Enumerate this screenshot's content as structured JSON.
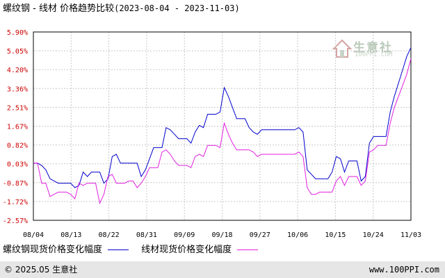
{
  "title_text": "螺纹钢 - 线材 价格趋势比较",
  "title_range": "(2023-08-04 - 2023-11-03)",
  "watermark": {
    "brand": "生意社",
    "domain": "100PPI.COM"
  },
  "legend": [
    {
      "name": "螺纹钢现货价格变化幅度",
      "color": "#0000cc"
    },
    {
      "name": "线材现货价格变化幅度",
      "color": "#e020e0"
    }
  ],
  "footer": {
    "copyright": "© 2025.05 生意社",
    "site": "www.100PPI.com"
  },
  "chart_data": {
    "type": "line",
    "title": "螺纹钢 - 线材 价格趋势比较",
    "subtitle": "(2023-08-04 - 2023-11-03)",
    "xlabel": "",
    "ylabel": "",
    "x_tick_labels": [
      "08/04",
      "08/13",
      "08/22",
      "08/31",
      "09/09",
      "09/18",
      "09/27",
      "10/06",
      "10/15",
      "10/24",
      "11/03"
    ],
    "y_tick_labels": [
      "5.90%",
      "5.05%",
      "4.20%",
      "3.36%",
      "2.51%",
      "1.67%",
      "0.82%",
      "0.03%",
      "-0.87%",
      "-1.72%",
      "-2.57%"
    ],
    "y_tick_values": [
      5.9,
      5.05,
      4.2,
      3.36,
      2.51,
      1.67,
      0.82,
      0.03,
      -0.87,
      -1.72,
      -2.57
    ],
    "ylim": [
      -2.57,
      5.9
    ],
    "xlim": [
      "2023-08-04",
      "2023-11-03"
    ],
    "grid": true,
    "legend_position": "bottom",
    "series": [
      {
        "name": "螺纹钢现货价格变化幅度",
        "color": "#0000cc",
        "points": [
          [
            "2023-08-04",
            0.0
          ],
          [
            "2023-08-05",
            0.0
          ],
          [
            "2023-08-06",
            -0.1
          ],
          [
            "2023-08-07",
            -0.3
          ],
          [
            "2023-08-08",
            -0.7
          ],
          [
            "2023-08-09",
            -0.8
          ],
          [
            "2023-08-10",
            -0.9
          ],
          [
            "2023-08-11",
            -0.9
          ],
          [
            "2023-08-12",
            -0.9
          ],
          [
            "2023-08-13",
            -0.9
          ],
          [
            "2023-08-14",
            -1.1
          ],
          [
            "2023-08-15",
            -1.0
          ],
          [
            "2023-08-16",
            -0.4
          ],
          [
            "2023-08-17",
            -0.6
          ],
          [
            "2023-08-18",
            -0.4
          ],
          [
            "2023-08-19",
            -0.4
          ],
          [
            "2023-08-20",
            -0.4
          ],
          [
            "2023-08-21",
            -0.9
          ],
          [
            "2023-08-22",
            -0.7
          ],
          [
            "2023-08-23",
            0.3
          ],
          [
            "2023-08-24",
            0.4
          ],
          [
            "2023-08-25",
            0.0
          ],
          [
            "2023-08-26",
            0.0
          ],
          [
            "2023-08-27",
            0.0
          ],
          [
            "2023-08-28",
            0.0
          ],
          [
            "2023-08-29",
            0.0
          ],
          [
            "2023-08-30",
            -0.6
          ],
          [
            "2023-08-31",
            -0.3
          ],
          [
            "2023-09-01",
            0.2
          ],
          [
            "2023-09-02",
            0.7
          ],
          [
            "2023-09-03",
            0.7
          ],
          [
            "2023-09-04",
            0.7
          ],
          [
            "2023-09-05",
            1.6
          ],
          [
            "2023-09-06",
            1.5
          ],
          [
            "2023-09-07",
            1.3
          ],
          [
            "2023-09-08",
            1.1
          ],
          [
            "2023-09-09",
            1.1
          ],
          [
            "2023-09-10",
            1.1
          ],
          [
            "2023-09-11",
            0.9
          ],
          [
            "2023-09-12",
            1.4
          ],
          [
            "2023-09-13",
            1.7
          ],
          [
            "2023-09-14",
            1.6
          ],
          [
            "2023-09-15",
            2.2
          ],
          [
            "2023-09-16",
            2.2
          ],
          [
            "2023-09-17",
            2.2
          ],
          [
            "2023-09-18",
            2.3
          ],
          [
            "2023-09-19",
            3.4
          ],
          [
            "2023-09-20",
            3.0
          ],
          [
            "2023-09-21",
            2.5
          ],
          [
            "2023-09-22",
            2.0
          ],
          [
            "2023-09-23",
            2.0
          ],
          [
            "2023-09-24",
            2.0
          ],
          [
            "2023-09-25",
            1.6
          ],
          [
            "2023-09-26",
            1.4
          ],
          [
            "2023-09-27",
            1.3
          ],
          [
            "2023-09-28",
            1.5
          ],
          [
            "2023-09-29",
            1.5
          ],
          [
            "2023-09-30",
            1.5
          ],
          [
            "2023-10-01",
            1.5
          ],
          [
            "2023-10-02",
            1.5
          ],
          [
            "2023-10-03",
            1.5
          ],
          [
            "2023-10-04",
            1.5
          ],
          [
            "2023-10-05",
            1.5
          ],
          [
            "2023-10-06",
            1.5
          ],
          [
            "2023-10-07",
            1.6
          ],
          [
            "2023-10-08",
            1.4
          ],
          [
            "2023-10-09",
            -0.3
          ],
          [
            "2023-10-10",
            -0.5
          ],
          [
            "2023-10-11",
            -0.7
          ],
          [
            "2023-10-12",
            -0.7
          ],
          [
            "2023-10-13",
            -0.7
          ],
          [
            "2023-10-14",
            -0.7
          ],
          [
            "2023-10-15",
            -0.4
          ],
          [
            "2023-10-16",
            0.3
          ],
          [
            "2023-10-17",
            0.2
          ],
          [
            "2023-10-18",
            -0.4
          ],
          [
            "2023-10-19",
            0.1
          ],
          [
            "2023-10-20",
            0.1
          ],
          [
            "2023-10-21",
            0.1
          ],
          [
            "2023-10-22",
            -0.8
          ],
          [
            "2023-10-23",
            -0.6
          ],
          [
            "2023-10-24",
            0.9
          ],
          [
            "2023-10-25",
            1.2
          ],
          [
            "2023-10-26",
            1.2
          ],
          [
            "2023-10-27",
            1.2
          ],
          [
            "2023-10-28",
            1.2
          ],
          [
            "2023-10-29",
            2.3
          ],
          [
            "2023-10-30",
            3.0
          ],
          [
            "2023-10-31",
            3.6
          ],
          [
            "2023-11-01",
            4.2
          ],
          [
            "2023-11-02",
            4.8
          ],
          [
            "2023-11-03",
            5.2
          ]
        ]
      },
      {
        "name": "线材现货价格变化幅度",
        "color": "#e020e0",
        "points": [
          [
            "2023-08-04",
            0.0
          ],
          [
            "2023-08-05",
            0.0
          ],
          [
            "2023-08-06",
            -0.9
          ],
          [
            "2023-08-07",
            -0.9
          ],
          [
            "2023-08-08",
            -1.5
          ],
          [
            "2023-08-09",
            -1.4
          ],
          [
            "2023-08-10",
            -1.3
          ],
          [
            "2023-08-11",
            -1.3
          ],
          [
            "2023-08-12",
            -1.3
          ],
          [
            "2023-08-13",
            -1.4
          ],
          [
            "2023-08-14",
            -1.6
          ],
          [
            "2023-08-15",
            -0.9
          ],
          [
            "2023-08-16",
            -1.0
          ],
          [
            "2023-08-17",
            -0.9
          ],
          [
            "2023-08-18",
            -0.9
          ],
          [
            "2023-08-19",
            -0.9
          ],
          [
            "2023-08-20",
            -1.8
          ],
          [
            "2023-08-21",
            -1.4
          ],
          [
            "2023-08-22",
            -0.6
          ],
          [
            "2023-08-23",
            -0.5
          ],
          [
            "2023-08-24",
            -0.9
          ],
          [
            "2023-08-25",
            -0.9
          ],
          [
            "2023-08-26",
            -0.9
          ],
          [
            "2023-08-27",
            -0.8
          ],
          [
            "2023-08-28",
            -0.8
          ],
          [
            "2023-08-29",
            -1.1
          ],
          [
            "2023-08-30",
            -0.9
          ],
          [
            "2023-08-31",
            -0.6
          ],
          [
            "2023-09-01",
            -0.2
          ],
          [
            "2023-09-02",
            -0.2
          ],
          [
            "2023-09-03",
            -0.2
          ],
          [
            "2023-09-04",
            0.5
          ],
          [
            "2023-09-05",
            0.6
          ],
          [
            "2023-09-06",
            0.4
          ],
          [
            "2023-09-07",
            0.1
          ],
          [
            "2023-09-08",
            -0.1
          ],
          [
            "2023-09-09",
            -0.1
          ],
          [
            "2023-09-10",
            -0.1
          ],
          [
            "2023-09-11",
            -0.2
          ],
          [
            "2023-09-12",
            0.3
          ],
          [
            "2023-09-13",
            0.4
          ],
          [
            "2023-09-14",
            0.3
          ],
          [
            "2023-09-15",
            0.8
          ],
          [
            "2023-09-16",
            0.8
          ],
          [
            "2023-09-17",
            0.8
          ],
          [
            "2023-09-18",
            0.7
          ],
          [
            "2023-09-19",
            1.8
          ],
          [
            "2023-09-20",
            1.3
          ],
          [
            "2023-09-21",
            0.9
          ],
          [
            "2023-09-22",
            0.6
          ],
          [
            "2023-09-23",
            0.6
          ],
          [
            "2023-09-24",
            0.6
          ],
          [
            "2023-09-25",
            0.6
          ],
          [
            "2023-09-26",
            0.5
          ],
          [
            "2023-09-27",
            0.3
          ],
          [
            "2023-09-28",
            0.4
          ],
          [
            "2023-09-29",
            0.4
          ],
          [
            "2023-09-30",
            0.4
          ],
          [
            "2023-10-01",
            0.4
          ],
          [
            "2023-10-02",
            0.4
          ],
          [
            "2023-10-03",
            0.4
          ],
          [
            "2023-10-04",
            0.4
          ],
          [
            "2023-10-05",
            0.4
          ],
          [
            "2023-10-06",
            0.4
          ],
          [
            "2023-10-07",
            0.5
          ],
          [
            "2023-10-08",
            0.3
          ],
          [
            "2023-10-09",
            -1.1
          ],
          [
            "2023-10-10",
            -1.4
          ],
          [
            "2023-10-11",
            -1.4
          ],
          [
            "2023-10-12",
            -1.3
          ],
          [
            "2023-10-13",
            -1.3
          ],
          [
            "2023-10-14",
            -1.3
          ],
          [
            "2023-10-15",
            -1.3
          ],
          [
            "2023-10-16",
            -0.8
          ],
          [
            "2023-10-17",
            -0.6
          ],
          [
            "2023-10-18",
            -1.0
          ],
          [
            "2023-10-19",
            -0.6
          ],
          [
            "2023-10-20",
            -0.6
          ],
          [
            "2023-10-21",
            -0.6
          ],
          [
            "2023-10-22",
            -1.0
          ],
          [
            "2023-10-23",
            -0.8
          ],
          [
            "2023-10-24",
            0.5
          ],
          [
            "2023-10-25",
            0.6
          ],
          [
            "2023-10-26",
            0.8
          ],
          [
            "2023-10-27",
            0.8
          ],
          [
            "2023-10-28",
            0.8
          ],
          [
            "2023-10-29",
            1.8
          ],
          [
            "2023-10-30",
            2.5
          ],
          [
            "2023-10-31",
            3.0
          ],
          [
            "2023-11-01",
            3.5
          ],
          [
            "2023-11-02",
            4.0
          ],
          [
            "2023-11-03",
            4.7
          ]
        ]
      }
    ]
  }
}
